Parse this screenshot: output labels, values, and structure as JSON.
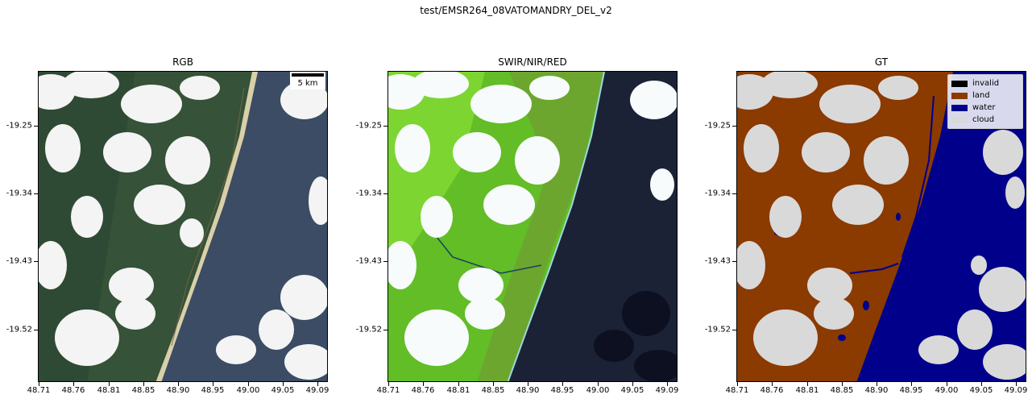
{
  "figure": {
    "title": "test/EMSR264_08VATOMANDRY_DEL_v2"
  },
  "panels": [
    {
      "title": "RGB"
    },
    {
      "title": "SWIR/NIR/RED"
    },
    {
      "title": "GT"
    }
  ],
  "axes": {
    "y_ticks": [
      "-19.25",
      "-19.34",
      "-19.43",
      "-19.52"
    ],
    "x_ticks": [
      "48.71",
      "48.76",
      "48.81",
      "48.85",
      "48.90",
      "48.95",
      "49.00",
      "49.05",
      "49.09"
    ]
  },
  "scalebar": {
    "label": "5 km"
  },
  "legend": [
    {
      "label": "invalid",
      "color": "#000000"
    },
    {
      "label": "land",
      "color": "#8b3a00"
    },
    {
      "label": "water",
      "color": "#00008b"
    },
    {
      "label": "cloud",
      "color": "#d9d9d9"
    }
  ],
  "colors": {
    "rgb_land": "#2f4a34",
    "rgb_sea": "#3b4c64",
    "rgb_cloud": "#f4f4f4",
    "rgb_beach": "#d9cfa9",
    "swir_land": "#62bd26",
    "swir_bright": "#8fe43a",
    "swir_sea": "#1b2236",
    "swir_cloud": "#f7fbfb",
    "gt_land": "#8b3a00",
    "gt_water": "#00008b",
    "gt_cloud": "#d9d9d9"
  }
}
